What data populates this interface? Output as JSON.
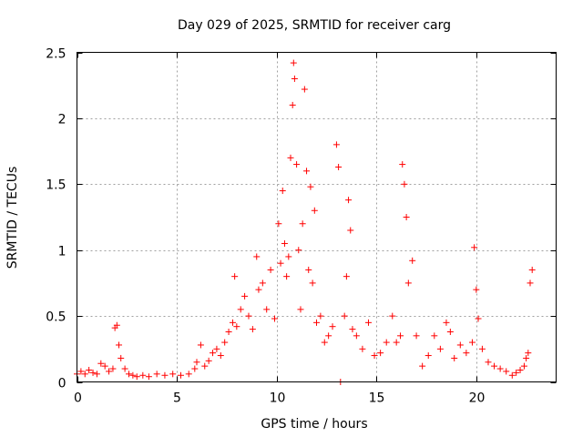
{
  "chart_data": {
    "type": "scatter",
    "title": "Day 029 of 2025, SRMTID for receiver carg",
    "xlabel": "GPS time / hours",
    "ylabel": "SRMTID / TECUs",
    "xlim": [
      0,
      24
    ],
    "ylim": [
      0,
      2.5
    ],
    "xticks": [
      0,
      5,
      10,
      15,
      20
    ],
    "xtick_labels": [
      "0",
      "5",
      "10",
      "15",
      "20"
    ],
    "yticks": [
      0,
      0.5,
      1,
      1.5,
      2,
      2.5
    ],
    "ytick_labels": [
      "0",
      "0.5",
      "1",
      "1.5",
      "2",
      "2.5"
    ],
    "grid": true,
    "marker": "plus",
    "color": "#ff0000",
    "series": [
      {
        "name": "SRMTID",
        "x": [
          0.0,
          0.2,
          0.4,
          0.6,
          0.8,
          1.0,
          1.2,
          1.4,
          1.6,
          1.8,
          1.9,
          2.0,
          2.1,
          2.2,
          2.4,
          2.6,
          2.8,
          3.0,
          3.3,
          3.6,
          4.0,
          4.4,
          4.8,
          5.2,
          5.6,
          5.9,
          6.0,
          6.2,
          6.4,
          6.6,
          6.8,
          7.0,
          7.2,
          7.4,
          7.6,
          7.8,
          7.9,
          8.0,
          8.2,
          8.4,
          8.6,
          8.8,
          9.0,
          9.1,
          9.3,
          9.5,
          9.7,
          9.9,
          10.1,
          10.2,
          10.3,
          10.4,
          10.5,
          10.6,
          10.7,
          10.8,
          10.85,
          10.9,
          11.0,
          11.1,
          11.2,
          11.3,
          11.4,
          11.5,
          11.6,
          11.7,
          11.8,
          11.9,
          12.0,
          12.2,
          12.4,
          12.6,
          12.8,
          13.0,
          13.1,
          13.2,
          13.4,
          13.5,
          13.6,
          13.7,
          13.8,
          14.0,
          14.3,
          14.6,
          14.9,
          15.2,
          15.5,
          15.8,
          16.0,
          16.2,
          16.3,
          16.4,
          16.5,
          16.6,
          16.8,
          17.0,
          17.3,
          17.6,
          17.9,
          18.2,
          18.5,
          18.7,
          18.9,
          19.2,
          19.5,
          19.8,
          19.9,
          20.0,
          20.1,
          20.3,
          20.6,
          20.9,
          21.2,
          21.5,
          21.8,
          22.0,
          22.2,
          22.4,
          22.5,
          22.6,
          22.7,
          22.8
        ],
        "y": [
          0.06,
          0.08,
          0.06,
          0.09,
          0.07,
          0.06,
          0.14,
          0.12,
          0.08,
          0.1,
          0.41,
          0.43,
          0.28,
          0.18,
          0.1,
          0.06,
          0.05,
          0.04,
          0.05,
          0.04,
          0.06,
          0.05,
          0.06,
          0.05,
          0.06,
          0.1,
          0.15,
          0.28,
          0.12,
          0.16,
          0.22,
          0.25,
          0.2,
          0.3,
          0.38,
          0.45,
          0.8,
          0.42,
          0.55,
          0.65,
          0.5,
          0.4,
          0.95,
          0.7,
          0.75,
          0.55,
          0.85,
          0.48,
          1.2,
          0.9,
          1.45,
          1.05,
          0.8,
          0.95,
          1.7,
          2.1,
          2.42,
          2.3,
          1.65,
          1.0,
          0.55,
          1.2,
          2.22,
          1.6,
          0.85,
          1.48,
          0.75,
          1.3,
          0.45,
          0.5,
          0.3,
          0.35,
          0.42,
          1.8,
          1.63,
          0.0,
          0.5,
          0.8,
          1.38,
          1.15,
          0.4,
          0.35,
          0.25,
          0.45,
          0.2,
          0.22,
          0.3,
          0.5,
          0.3,
          0.35,
          1.65,
          1.5,
          1.25,
          0.75,
          0.92,
          0.35,
          0.12,
          0.2,
          0.35,
          0.25,
          0.45,
          0.38,
          0.18,
          0.28,
          0.22,
          0.3,
          1.02,
          0.7,
          0.48,
          0.25,
          0.15,
          0.12,
          0.1,
          0.08,
          0.05,
          0.07,
          0.09,
          0.12,
          0.18,
          0.22,
          0.75,
          0.85
        ]
      }
    ]
  }
}
